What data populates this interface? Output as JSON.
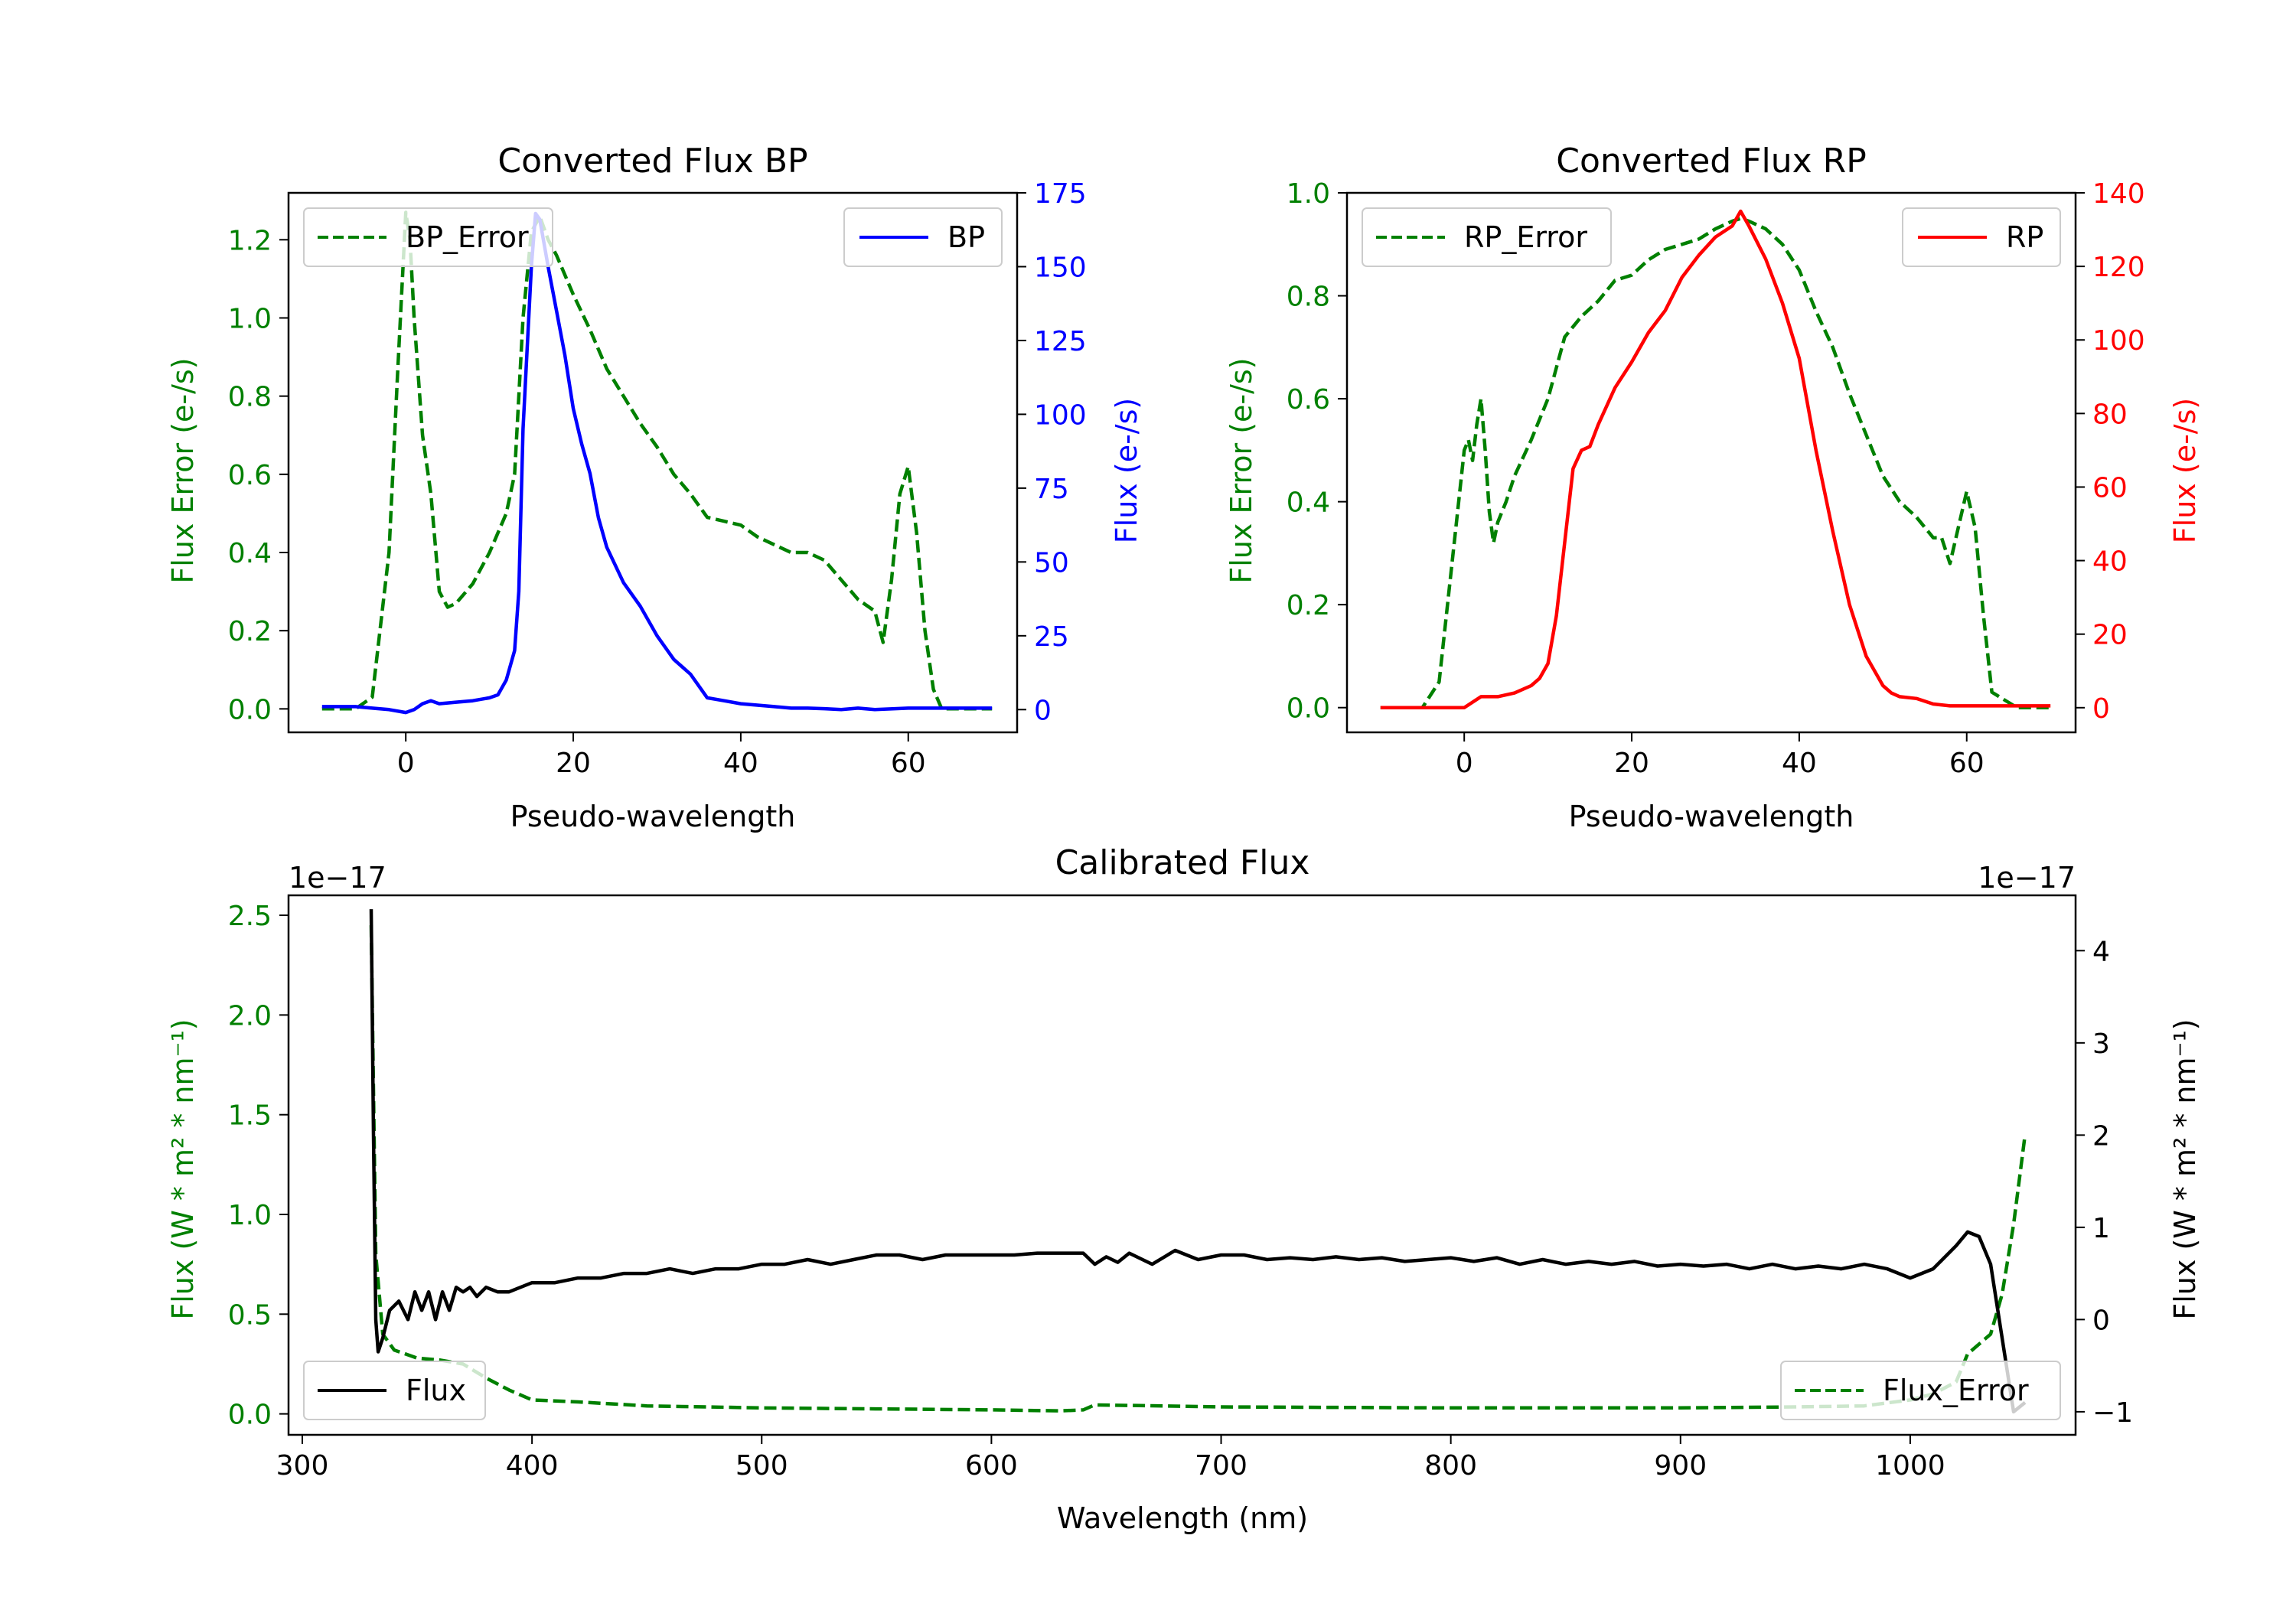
{
  "chart_data": [
    {
      "type": "line",
      "title": "Converted Flux BP",
      "xlabel": "Pseudo-wavelength",
      "ylabel_left": "Flux Error (e-/s)",
      "ylabel_right": "Flux (e-/s)",
      "xlim": [
        -14,
        73
      ],
      "ylim_left": [
        -0.06,
        1.32
      ],
      "ylim_right": [
        -7.7,
        175
      ],
      "xticks": [
        "0",
        "20",
        "40",
        "60"
      ],
      "yticks_left": [
        "0.0",
        "0.2",
        "0.4",
        "0.6",
        "0.8",
        "1.0",
        "1.2"
      ],
      "yticks_right": [
        "0",
        "25",
        "50",
        "75",
        "100",
        "125",
        "150",
        "175"
      ],
      "left_color": "#008000",
      "right_color": "#0000ff",
      "series": [
        {
          "name": "BP_Error",
          "axis": "left",
          "style": "dashed",
          "color": "#008000",
          "legend": "top-left",
          "x": [
            -10,
            -6,
            -4,
            -2,
            -1,
            0,
            0.5,
            1,
            2,
            3,
            4,
            5,
            6,
            8,
            10,
            12,
            13,
            14,
            15,
            16,
            17,
            18,
            20,
            22,
            24,
            26,
            28,
            30,
            32,
            34,
            36,
            38,
            40,
            42,
            44,
            46,
            48,
            50,
            52,
            54,
            56,
            57,
            58,
            59,
            60,
            61,
            62,
            63,
            64,
            66,
            70
          ],
          "y": [
            0.0,
            0.0,
            0.03,
            0.4,
            0.85,
            1.27,
            1.2,
            1.0,
            0.7,
            0.55,
            0.3,
            0.26,
            0.27,
            0.32,
            0.4,
            0.5,
            0.6,
            1.0,
            1.22,
            1.26,
            1.2,
            1.16,
            1.06,
            0.97,
            0.87,
            0.8,
            0.73,
            0.67,
            0.6,
            0.55,
            0.49,
            0.48,
            0.47,
            0.44,
            0.42,
            0.4,
            0.4,
            0.38,
            0.33,
            0.28,
            0.25,
            0.17,
            0.33,
            0.55,
            0.62,
            0.45,
            0.2,
            0.05,
            0.0,
            0.0,
            0.0
          ]
        },
        {
          "name": "BP",
          "axis": "right",
          "style": "solid",
          "color": "#0000ff",
          "legend": "top-right",
          "x": [
            -10,
            -6,
            -4,
            -2,
            0,
            1,
            2,
            3,
            4,
            6,
            8,
            10,
            11,
            12,
            13,
            13.5,
            14,
            15,
            15.5,
            16,
            17,
            18,
            19,
            20,
            21,
            22,
            23,
            24,
            26,
            28,
            30,
            32,
            34,
            36,
            38,
            40,
            42,
            44,
            46,
            48,
            50,
            52,
            54,
            56,
            60,
            65,
            70
          ],
          "y": [
            1,
            1,
            0.5,
            0,
            -1,
            0,
            2,
            3,
            2,
            2.5,
            3,
            4,
            5,
            10,
            20,
            40,
            95,
            150,
            168,
            166,
            150,
            135,
            120,
            102,
            90,
            80,
            65,
            55,
            43,
            35,
            25,
            17,
            12,
            4,
            3,
            2,
            1.5,
            1,
            0.5,
            0.5,
            0.3,
            0,
            0.5,
            0,
            0.5,
            0.5,
            0.5
          ]
        }
      ]
    },
    {
      "type": "line",
      "title": "Converted Flux RP",
      "xlabel": "Pseudo-wavelength",
      "ylabel_left": "Flux Error (e-/s)",
      "ylabel_right": "Flux (e-/s)",
      "xlim": [
        -14,
        73
      ],
      "ylim_left": [
        -0.048,
        1.0
      ],
      "ylim_right": [
        -6.7,
        140
      ],
      "xticks": [
        "0",
        "20",
        "40",
        "60"
      ],
      "yticks_left": [
        "0.0",
        "0.2",
        "0.4",
        "0.6",
        "0.8",
        "1.0"
      ],
      "yticks_right": [
        "0",
        "20",
        "40",
        "60",
        "80",
        "100",
        "120",
        "140"
      ],
      "left_color": "#008000",
      "right_color": "#ff0000",
      "series": [
        {
          "name": "RP_Error",
          "axis": "left",
          "style": "dashed",
          "color": "#008000",
          "legend": "top-left",
          "x": [
            -10,
            -5,
            -3,
            -1,
            0,
            0.5,
            1,
            1.5,
            2,
            2.5,
            3,
            3.5,
            4,
            5,
            6,
            8,
            10,
            12,
            13,
            14,
            16,
            18,
            20,
            22,
            24,
            26,
            28,
            30,
            32,
            33,
            34,
            36,
            38,
            40,
            42,
            44,
            46,
            48,
            50,
            52,
            54,
            56,
            57,
            58,
            59,
            60,
            61,
            62,
            63,
            66,
            70
          ],
          "y": [
            0,
            0,
            0.05,
            0.35,
            0.5,
            0.52,
            0.48,
            0.55,
            0.6,
            0.5,
            0.38,
            0.32,
            0.36,
            0.4,
            0.45,
            0.52,
            0.6,
            0.72,
            0.74,
            0.76,
            0.79,
            0.83,
            0.84,
            0.87,
            0.89,
            0.9,
            0.91,
            0.93,
            0.945,
            0.95,
            0.945,
            0.93,
            0.9,
            0.85,
            0.77,
            0.7,
            0.61,
            0.53,
            0.45,
            0.4,
            0.37,
            0.33,
            0.33,
            0.28,
            0.35,
            0.42,
            0.35,
            0.18,
            0.03,
            0,
            0
          ]
        },
        {
          "name": "RP",
          "axis": "right",
          "style": "solid",
          "color": "#ff0000",
          "legend": "top-right",
          "x": [
            -10,
            -4,
            0,
            2,
            4,
            6,
            8,
            9,
            10,
            11,
            12,
            13,
            14,
            15,
            16,
            18,
            20,
            22,
            24,
            26,
            28,
            30,
            32,
            33,
            34,
            36,
            38,
            40,
            42,
            44,
            46,
            48,
            50,
            51,
            52,
            54,
            56,
            58,
            60,
            65,
            70
          ],
          "y": [
            0,
            0,
            0,
            3,
            3,
            4,
            6,
            8,
            12,
            25,
            45,
            65,
            70,
            71,
            77,
            87,
            94,
            102,
            108,
            117,
            123,
            128,
            131,
            135,
            131,
            122,
            110,
            95,
            70,
            48,
            28,
            14,
            6,
            4,
            3,
            2.5,
            1,
            0.5,
            0.5,
            0.5,
            0.5
          ]
        }
      ]
    },
    {
      "type": "line",
      "title": "Calibrated Flux",
      "xlabel": "Wavelength (nm)",
      "ylabel_left": "Flux (W * m² * nm⁻¹)",
      "ylabel_right": "Flux (W * m² * nm⁻¹)",
      "left_multiplier": "1e−17",
      "right_multiplier": "1e−17",
      "xlim": [
        294,
        1072
      ],
      "ylim_left": [
        -0.105,
        2.6
      ],
      "ylim_right": [
        -1.25,
        4.6
      ],
      "xticks": [
        "300",
        "400",
        "500",
        "600",
        "700",
        "800",
        "900",
        "1000"
      ],
      "yticks_left": [
        "0.0",
        "0.5",
        "1.0",
        "1.5",
        "2.0",
        "2.5"
      ],
      "yticks_right": [
        "−1",
        "0",
        "1",
        "2",
        "3",
        "4"
      ],
      "left_color": "#008000",
      "right_color": "#000000",
      "series": [
        {
          "name": "Flux_Error",
          "axis": "left",
          "style": "dashed",
          "color": "#008000",
          "legend": "bottom-right",
          "x": [
            330,
            332,
            335,
            340,
            350,
            360,
            370,
            380,
            390,
            400,
            420,
            450,
            500,
            550,
            600,
            630,
            640,
            645,
            700,
            800,
            900,
            950,
            980,
            1000,
            1010,
            1020,
            1025,
            1030,
            1035,
            1040,
            1045,
            1050
          ],
          "y": [
            2.45,
            0.8,
            0.4,
            0.32,
            0.28,
            0.27,
            0.25,
            0.18,
            0.12,
            0.07,
            0.06,
            0.04,
            0.03,
            0.025,
            0.02,
            0.015,
            0.02,
            0.045,
            0.035,
            0.03,
            0.03,
            0.035,
            0.04,
            0.07,
            0.1,
            0.16,
            0.3,
            0.35,
            0.4,
            0.6,
            0.95,
            1.4
          ]
        },
        {
          "name": "Flux",
          "axis": "right",
          "style": "solid",
          "color": "#000000",
          "legend": "bottom-left",
          "x": [
            330,
            331,
            332,
            333,
            335,
            338,
            342,
            346,
            349,
            352,
            355,
            358,
            361,
            364,
            367,
            370,
            373,
            376,
            380,
            385,
            390,
            400,
            410,
            420,
            430,
            440,
            450,
            460,
            470,
            480,
            490,
            500,
            510,
            520,
            530,
            540,
            550,
            560,
            570,
            580,
            590,
            600,
            610,
            620,
            630,
            640,
            645,
            650,
            655,
            660,
            670,
            680,
            690,
            700,
            710,
            720,
            730,
            740,
            750,
            760,
            770,
            780,
            790,
            800,
            810,
            820,
            830,
            840,
            850,
            860,
            870,
            880,
            890,
            900,
            910,
            920,
            930,
            940,
            950,
            960,
            970,
            980,
            990,
            1000,
            1010,
            1020,
            1025,
            1030,
            1035,
            1040,
            1045,
            1050
          ],
          "y": [
            4.45,
            2.0,
            0.0,
            -0.35,
            -0.2,
            0.1,
            0.2,
            0.0,
            0.3,
            0.1,
            0.3,
            0.0,
            0.3,
            0.1,
            0.35,
            0.3,
            0.35,
            0.25,
            0.35,
            0.3,
            0.3,
            0.4,
            0.4,
            0.45,
            0.45,
            0.5,
            0.5,
            0.55,
            0.5,
            0.55,
            0.55,
            0.6,
            0.6,
            0.65,
            0.6,
            0.65,
            0.7,
            0.7,
            0.65,
            0.7,
            0.7,
            0.7,
            0.7,
            0.72,
            0.72,
            0.72,
            0.6,
            0.68,
            0.62,
            0.72,
            0.6,
            0.75,
            0.65,
            0.7,
            0.7,
            0.65,
            0.67,
            0.65,
            0.68,
            0.65,
            0.67,
            0.63,
            0.65,
            0.67,
            0.63,
            0.67,
            0.6,
            0.65,
            0.6,
            0.63,
            0.6,
            0.63,
            0.58,
            0.6,
            0.58,
            0.6,
            0.55,
            0.6,
            0.55,
            0.58,
            0.55,
            0.6,
            0.55,
            0.45,
            0.55,
            0.8,
            0.95,
            0.9,
            0.6,
            -0.2,
            -1.0,
            -0.9
          ]
        }
      ]
    }
  ]
}
